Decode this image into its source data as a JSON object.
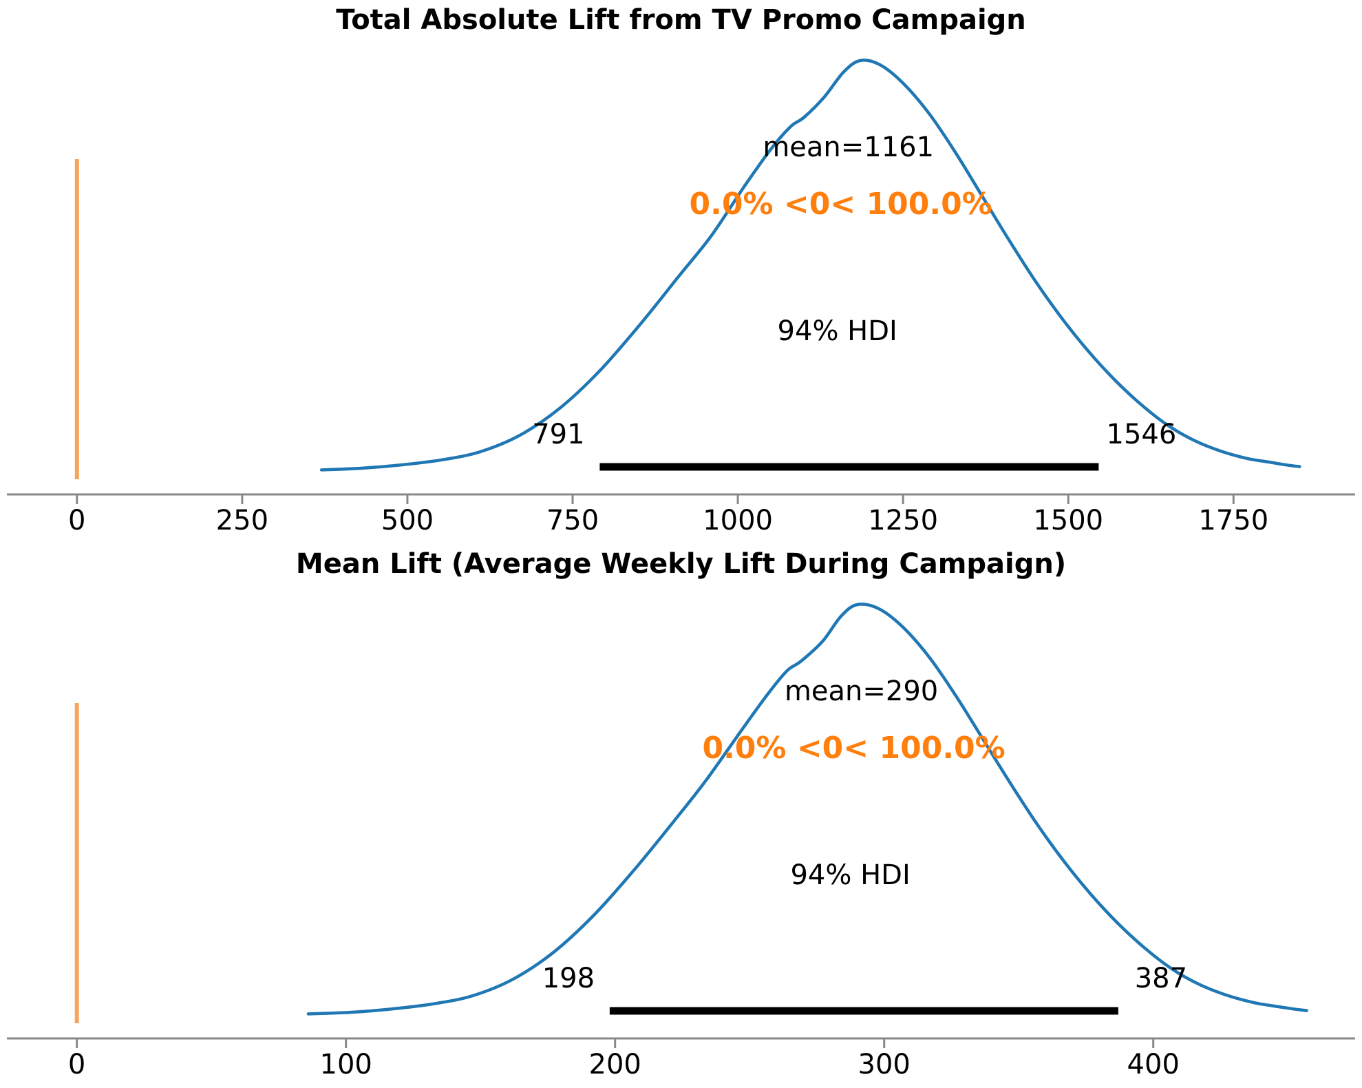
{
  "figure": {
    "background": "#ffffff"
  },
  "colors": {
    "curve_blue": "#1f77b4",
    "ref_line_orange": "#f9a45c",
    "prob_text_orange": "#ff7f0e",
    "hdi_bar_black": "#000000",
    "axis_gray": "#888888",
    "text_black": "#000000"
  },
  "chart_data": [
    {
      "type": "line",
      "subtype": "posterior-density-kde",
      "title": "Total Absolute Lift from TV Promo Campaign",
      "mean": 1161,
      "mean_label": "mean=1161",
      "prob_label": "0.0% <0< 100.0%",
      "hdi_label": "94% HDI",
      "hdi_interval": [
        791,
        1546
      ],
      "hdi_lo_label": "791",
      "hdi_hi_label": "1546",
      "ref_value": 0,
      "x_ticks": [
        0,
        250,
        500,
        750,
        1000,
        1250,
        1500,
        1750
      ],
      "xlim": [
        -106,
        1934
      ],
      "grid": false,
      "legend": "none",
      "curve": {
        "x": [
          370,
          430,
          490,
          550,
          610,
          670,
          730,
          790,
          850,
          910,
          960,
          1010,
          1050,
          1080,
          1100,
          1130,
          1160,
          1185,
          1215,
          1250,
          1290,
          1330,
          1370,
          1410,
          1450,
          1490,
          1530,
          1570,
          1610,
          1650,
          1690,
          1730,
          1770,
          1800,
          1830,
          1850
        ],
        "y_norm": [
          0.006,
          0.01,
          0.018,
          0.03,
          0.05,
          0.09,
          0.155,
          0.245,
          0.355,
          0.475,
          0.575,
          0.695,
          0.785,
          0.84,
          0.862,
          0.91,
          0.972,
          1.0,
          0.99,
          0.945,
          0.87,
          0.775,
          0.67,
          0.565,
          0.465,
          0.375,
          0.295,
          0.225,
          0.165,
          0.115,
          0.078,
          0.052,
          0.034,
          0.026,
          0.018,
          0.014
        ]
      }
    },
    {
      "type": "line",
      "subtype": "posterior-density-kde",
      "title": "Mean Lift (Average Weekly Lift During Campaign)",
      "mean": 290,
      "mean_label": "mean=290",
      "prob_label": "0.0% <0< 100.0%",
      "hdi_label": "94% HDI",
      "hdi_interval": [
        198,
        387
      ],
      "hdi_lo_label": "198",
      "hdi_hi_label": "387",
      "ref_value": 0,
      "x_ticks": [
        0,
        100,
        200,
        300,
        400
      ],
      "xlim": [
        -26,
        475
      ],
      "grid": false,
      "legend": "none",
      "curve": {
        "x": [
          86,
          102,
          117,
          132,
          147,
          162,
          177,
          192,
          207,
          222,
          234,
          247,
          257,
          264,
          269,
          277,
          284,
          290,
          298,
          307,
          317,
          327,
          337,
          347,
          357,
          367,
          377,
          387,
          397,
          407,
          417,
          427,
          437,
          444,
          452,
          457
        ],
        "y_norm": [
          0.006,
          0.01,
          0.018,
          0.03,
          0.05,
          0.09,
          0.155,
          0.245,
          0.355,
          0.475,
          0.575,
          0.695,
          0.785,
          0.84,
          0.862,
          0.91,
          0.972,
          1.0,
          0.99,
          0.945,
          0.87,
          0.775,
          0.67,
          0.565,
          0.465,
          0.375,
          0.295,
          0.225,
          0.165,
          0.115,
          0.078,
          0.052,
          0.034,
          0.026,
          0.018,
          0.014
        ]
      }
    }
  ]
}
